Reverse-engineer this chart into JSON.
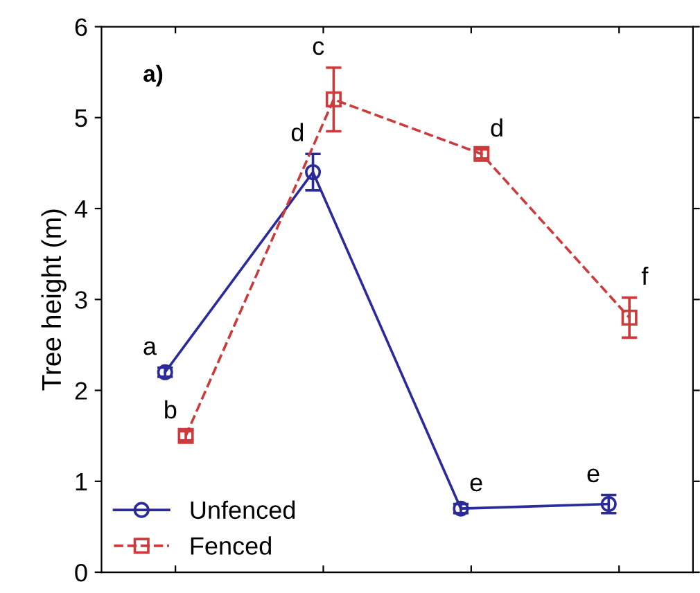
{
  "chart_data": {
    "type": "line",
    "ylabel": "Tree height (m)",
    "categories": [
      null,
      null,
      null,
      null
    ],
    "ylim": [
      0,
      6
    ],
    "yticks": [
      0,
      1,
      2,
      3,
      4,
      5,
      6
    ],
    "grid": false,
    "legend": "bottom left",
    "series": [
      {
        "name": "Unfenced",
        "color": "#2a2a9a",
        "values": [
          2.2,
          4.4,
          0.7,
          0.75
        ],
        "errors": [
          0.05,
          0.2,
          0.05,
          0.1
        ],
        "marker": "circle",
        "line_style": "solid"
      },
      {
        "name": "Fenced",
        "color": "#cc3b3b",
        "values": [
          1.5,
          5.2,
          4.6,
          2.8
        ],
        "errors": [
          0.05,
          0.35,
          0.05,
          0.22
        ],
        "marker": "square",
        "line_style": "dashed"
      }
    ],
    "annotations": [
      "a)",
      "a",
      "d",
      "e",
      "e",
      "b",
      "c",
      "d",
      "f"
    ]
  }
}
